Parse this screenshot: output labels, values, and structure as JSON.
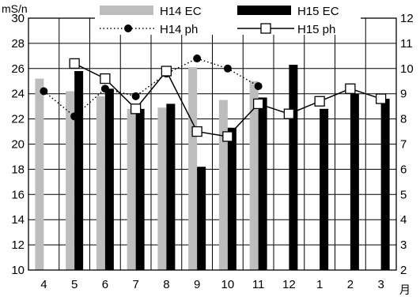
{
  "chart_data": {
    "type": "bar",
    "categories": [
      "4",
      "5",
      "6",
      "7",
      "8",
      "9",
      "10",
      "11",
      "12",
      "1",
      "2",
      "3"
    ],
    "x_unit": "月",
    "y_left": {
      "label": "mS/n",
      "min": 10,
      "max": 30,
      "ticks": [
        10,
        12,
        14,
        16,
        18,
        20,
        22,
        24,
        26,
        28,
        30
      ]
    },
    "y_right": {
      "min": 2,
      "max": 12,
      "ticks": [
        2,
        3,
        4,
        5,
        6,
        7,
        8,
        9,
        10,
        11,
        12
      ]
    },
    "grid": true,
    "legend_position": "top",
    "series": [
      {
        "name": "H14 EC",
        "kind": "bar",
        "axis": "left",
        "color": "#bdbdbd",
        "values": [
          25.2,
          24.2,
          23.8,
          22.8,
          22.9,
          26.1,
          23.5,
          25.0,
          null,
          null,
          null,
          null
        ]
      },
      {
        "name": "H15 EC",
        "kind": "bar",
        "axis": "left",
        "color": "#000000",
        "values": [
          null,
          25.8,
          24.4,
          22.8,
          23.2,
          18.2,
          21.3,
          23.7,
          26.3,
          22.8,
          24.0,
          23.6
        ]
      },
      {
        "name": "H14 ph",
        "kind": "line",
        "axis": "right",
        "style": "dotted",
        "marker": "filled-circle",
        "color": "#000000",
        "values": [
          9.1,
          8.1,
          9.2,
          8.9,
          9.8,
          10.4,
          10.0,
          9.3,
          null,
          null,
          null,
          null
        ]
      },
      {
        "name": "H15 ph",
        "kind": "line",
        "axis": "right",
        "style": "solid",
        "marker": "open-square",
        "color": "#000000",
        "values": [
          null,
          10.2,
          9.6,
          8.4,
          9.9,
          7.5,
          7.3,
          8.6,
          8.2,
          8.7,
          9.2,
          8.8
        ]
      }
    ]
  }
}
